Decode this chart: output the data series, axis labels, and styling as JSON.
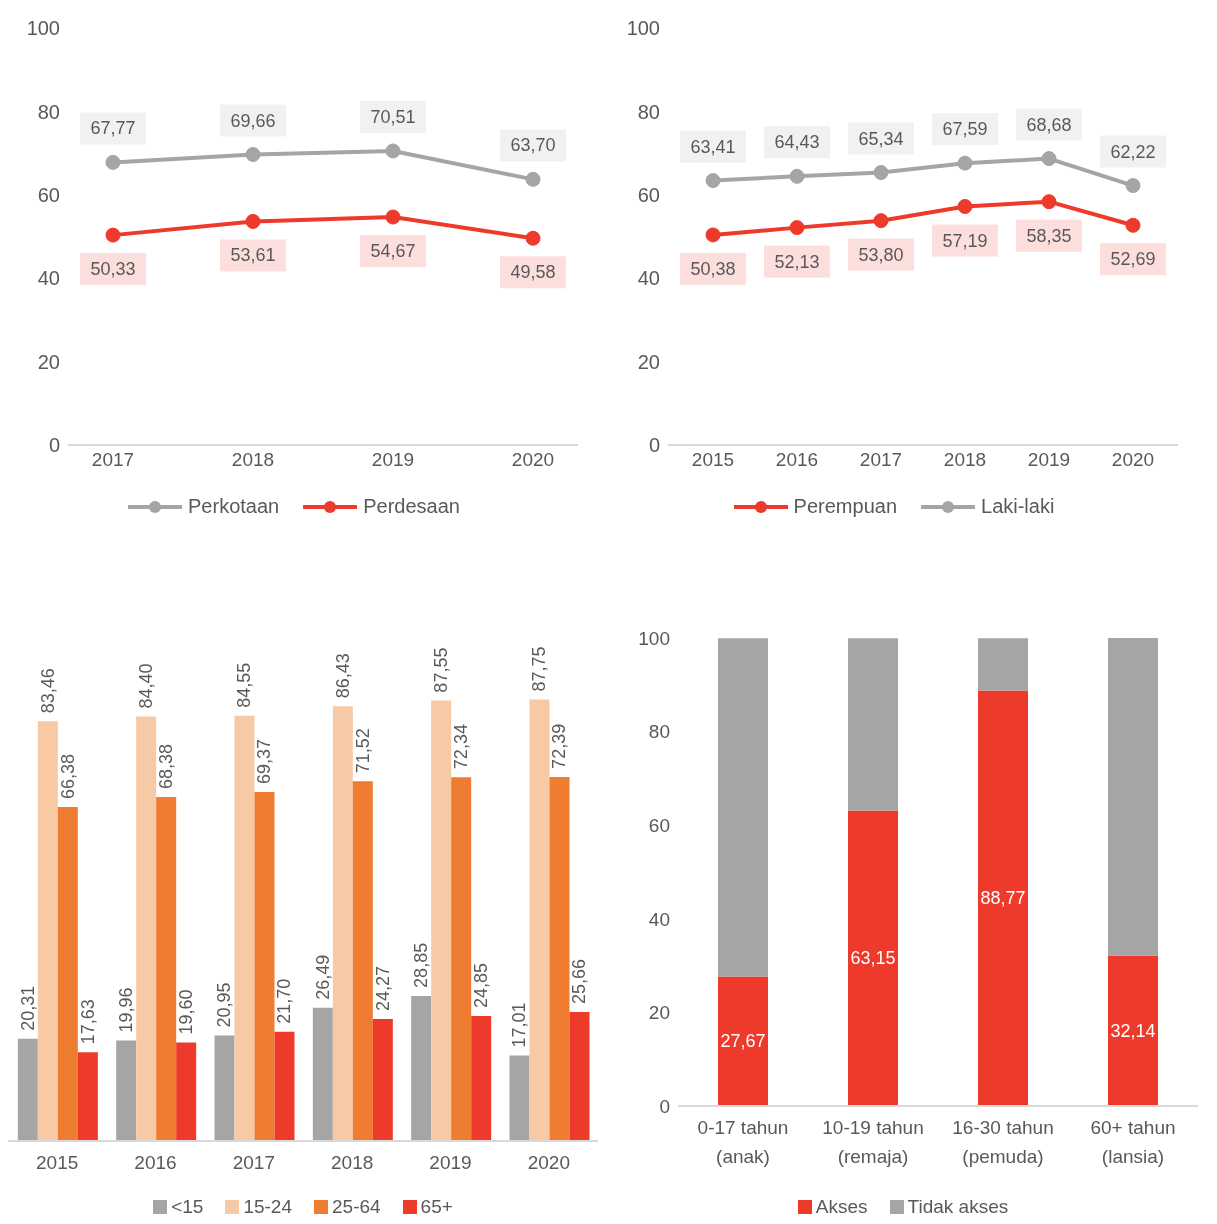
{
  "chart_data": [
    {
      "type": "line",
      "categories": [
        "2017",
        "2018",
        "2019",
        "2020"
      ],
      "ylim": [
        0,
        100
      ],
      "yticks": [
        0,
        20,
        40,
        60,
        80,
        100
      ],
      "grid": false,
      "legend": "bottom",
      "marker": "circle",
      "series": [
        {
          "name": "Perkotaan",
          "color": "#a5a5a5",
          "values": [
            67.77,
            69.66,
            70.51,
            63.7
          ],
          "value_labels": [
            "67,77",
            "69,66",
            "70,51",
            "63,70"
          ]
        },
        {
          "name": "Perdesaan",
          "color": "#ee3a2a",
          "values": [
            50.33,
            53.61,
            54.67,
            49.58
          ],
          "value_labels": [
            "50,33",
            "53,61",
            "54,67",
            "49,58"
          ]
        }
      ]
    },
    {
      "type": "line",
      "categories": [
        "2015",
        "2016",
        "2017",
        "2018",
        "2019",
        "2020"
      ],
      "ylim": [
        0,
        100
      ],
      "yticks": [
        0,
        20,
        40,
        60,
        80,
        100
      ],
      "grid": false,
      "legend": "bottom",
      "marker": "circle",
      "series": [
        {
          "name": "Perempuan",
          "color": "#ee3a2a",
          "values": [
            50.38,
            52.13,
            53.8,
            57.19,
            58.35,
            52.69
          ],
          "value_labels": [
            "50,38",
            "52,13",
            "53,80",
            "57,19",
            "58,35",
            "52,69"
          ]
        },
        {
          "name": "Laki-laki",
          "color": "#a5a5a5",
          "values": [
            63.41,
            64.43,
            65.34,
            67.59,
            68.68,
            62.22
          ],
          "value_labels": [
            "63,41",
            "64,43",
            "65,34",
            "67,59",
            "68,68",
            "62,22"
          ]
        }
      ]
    },
    {
      "type": "bar",
      "categories": [
        "2015",
        "2016",
        "2017",
        "2018",
        "2019",
        "2020"
      ],
      "tick_labels": "x",
      "grid": false,
      "legend": "bottom",
      "series": [
        {
          "name": "<15",
          "color": "#a5a5a5",
          "values": [
            20.31,
            19.96,
            20.95,
            26.49,
            28.85,
            17.01
          ],
          "value_labels": [
            "20,31",
            "19,96",
            "20,95",
            "26,49",
            "28,85",
            "17,01"
          ]
        },
        {
          "name": "15-24",
          "color": "#f8c9a5",
          "values": [
            83.46,
            84.4,
            84.55,
            86.43,
            87.55,
            87.75
          ],
          "value_labels": [
            "83,46",
            "84,40",
            "84,55",
            "86,43",
            "87,55",
            "87,75"
          ]
        },
        {
          "name": "25-64",
          "color": "#ee7d31",
          "values": [
            66.38,
            68.38,
            69.37,
            71.52,
            72.34,
            72.39
          ],
          "value_labels": [
            "66,38",
            "68,38",
            "69,37",
            "71,52",
            "72,34",
            "72,39"
          ]
        },
        {
          "name": "65+",
          "color": "#ee3a2a",
          "values": [
            17.63,
            19.6,
            21.7,
            24.27,
            24.85,
            25.66
          ],
          "value_labels": [
            "17,63",
            "19,60",
            "21,70",
            "24,27",
            "24,85",
            "25,66"
          ]
        }
      ]
    },
    {
      "type": "bar",
      "stacked": true,
      "categories": [
        "0-17 tahun (anak)",
        "10-19 tahun (remaja)",
        "16-30 tahun (pemuda)",
        "60+ tahun (lansia)"
      ],
      "ylim": [
        0,
        100
      ],
      "yticks": [
        0,
        20,
        40,
        60,
        80,
        100
      ],
      "grid": false,
      "legend": "bottom",
      "series": [
        {
          "name": "Akses",
          "color": "#ee3a2a",
          "values": [
            27.67,
            63.15,
            88.77,
            32.14
          ],
          "value_labels": [
            "27,67",
            "63,15",
            "88,77",
            "32,14"
          ]
        },
        {
          "name": "Tidak akses",
          "color": "#a5a5a5",
          "values": [
            72.3,
            36.8,
            11.2,
            67.9
          ]
        }
      ]
    }
  ]
}
